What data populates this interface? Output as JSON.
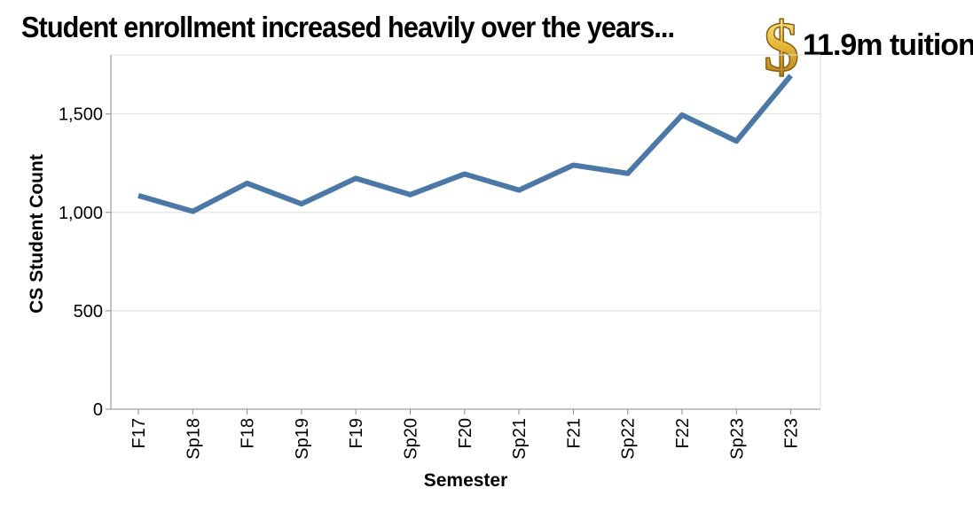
{
  "title": "Student enrollment increased heavily over the years...",
  "annotation": {
    "icon": "dollar-sign-icon",
    "text": "11.9m tuition"
  },
  "colors": {
    "line": "#4c78a8",
    "grid": "#dddddd",
    "axis": "#888888",
    "dollar": "#e0b23a"
  },
  "chart_data": {
    "type": "line",
    "categories": [
      "F17",
      "Sp18",
      "F18",
      "Sp19",
      "F19",
      "Sp20",
      "F20",
      "Sp21",
      "F21",
      "Sp22",
      "F22",
      "Sp23",
      "F23"
    ],
    "series": [
      {
        "values": [
          1085,
          1005,
          1148,
          1043,
          1173,
          1090,
          1195,
          1113,
          1240,
          1198,
          1495,
          1362,
          1695
        ]
      }
    ],
    "xlabel": "Semester",
    "ylabel": "CS Student Count",
    "ylim": [
      0,
      1800
    ],
    "yticks": [
      0,
      500,
      1000,
      1500
    ],
    "ytick_labels": [
      "0",
      "500",
      "1,000",
      "1,500"
    ],
    "grid": true,
    "legend": "none"
  }
}
